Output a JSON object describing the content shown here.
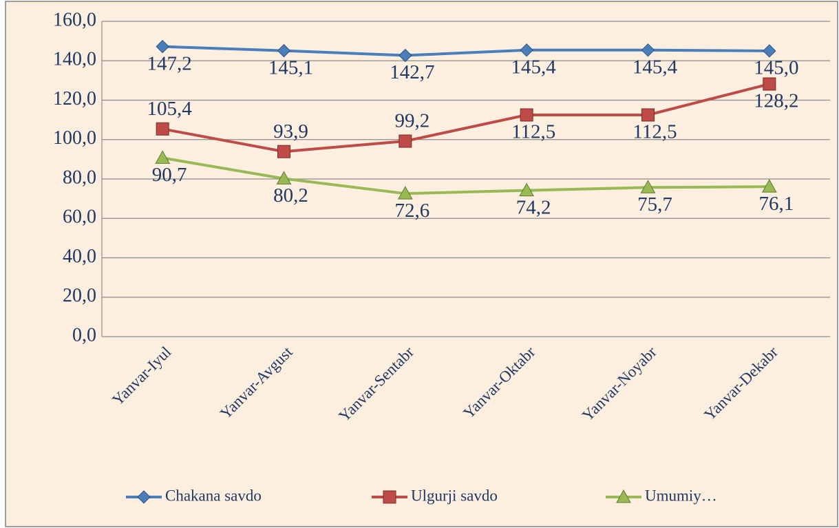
{
  "chart_data": {
    "type": "line",
    "categories": [
      "Yanvar-Iyul",
      "Yanvar-Avgust",
      "Yanvar-Sentabr",
      "Yanvar-Oktabr",
      "Yanvar-Noyabr",
      "Yanvar-Dekabr"
    ],
    "series": [
      {
        "name": "Chakana savdo",
        "color": "#4a7ebb",
        "marker": "diamond",
        "values": [
          147.2,
          145.1,
          142.7,
          145.4,
          145.4,
          145.0
        ],
        "value_labels": [
          "147,2",
          "145,1",
          "142,7",
          "145,4",
          "145,4",
          "145,0"
        ]
      },
      {
        "name": "Ulgurji savdo",
        "color": "#be4b48",
        "marker": "square",
        "values": [
          105.4,
          93.9,
          99.2,
          112.5,
          112.5,
          128.2
        ],
        "value_labels": [
          "105,4",
          "93,9",
          "99,2",
          "112,5",
          "112,5",
          "128,2"
        ]
      },
      {
        "name": "Umumiy…",
        "color": "#98b954",
        "marker": "triangle",
        "values": [
          90.7,
          80.2,
          72.6,
          74.2,
          75.7,
          76.1
        ],
        "value_labels": [
          "90,7",
          "80,2",
          "72,6",
          "74,2",
          "75,7",
          "76,1"
        ]
      }
    ],
    "ylim": [
      0,
      160
    ],
    "yticks": [
      {
        "value": 0,
        "label": "0,0"
      },
      {
        "value": 20,
        "label": "20,0"
      },
      {
        "value": 40,
        "label": "40,0"
      },
      {
        "value": 60,
        "label": "60,0"
      },
      {
        "value": 80,
        "label": "80,0"
      },
      {
        "value": 100,
        "label": "100,0"
      },
      {
        "value": 120,
        "label": "120,0"
      },
      {
        "value": 140,
        "label": "140,0"
      },
      {
        "value": 160,
        "label": "160,0"
      }
    ],
    "grid": true,
    "legend": "bottom"
  }
}
